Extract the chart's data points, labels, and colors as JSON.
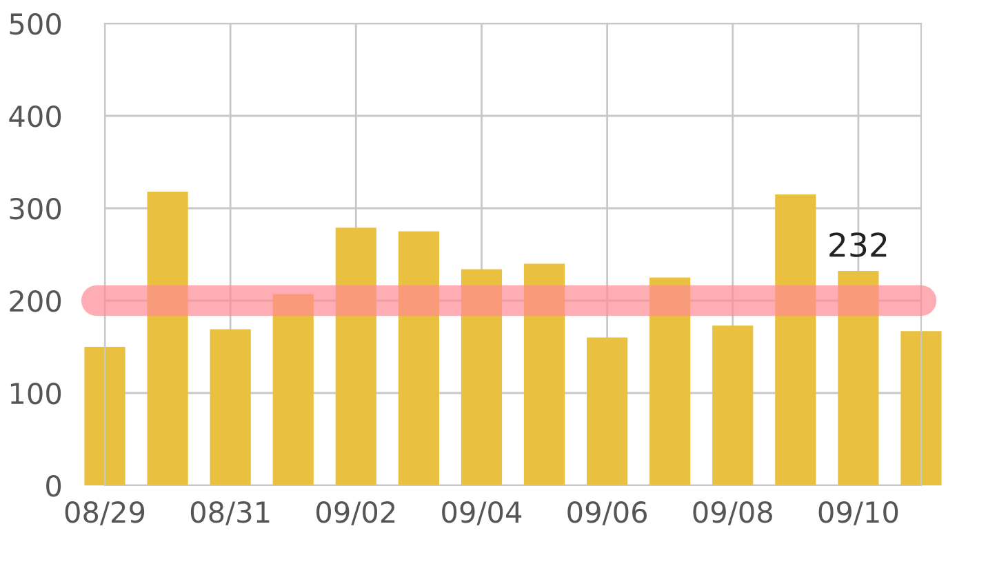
{
  "chart_data": {
    "type": "bar",
    "categories": [
      "08/29",
      null,
      "08/31",
      null,
      "09/02",
      null,
      "09/04",
      null,
      "09/06",
      null,
      "09/08",
      null,
      "09/10",
      null
    ],
    "values": [
      150,
      318,
      169,
      207,
      279,
      275,
      234,
      240,
      160,
      225,
      173,
      315,
      232,
      167
    ],
    "color": "#e9c03f",
    "ylim": [
      0,
      500
    ],
    "yticks": [
      0,
      100,
      200,
      300,
      400,
      500
    ],
    "grid": true,
    "ref_lines": [
      {
        "axis": "y",
        "value": 200,
        "color": "#ff8a96"
      }
    ],
    "value_labels": [
      null,
      null,
      null,
      null,
      null,
      null,
      null,
      null,
      null,
      null,
      null,
      null,
      "232",
      null
    ]
  }
}
